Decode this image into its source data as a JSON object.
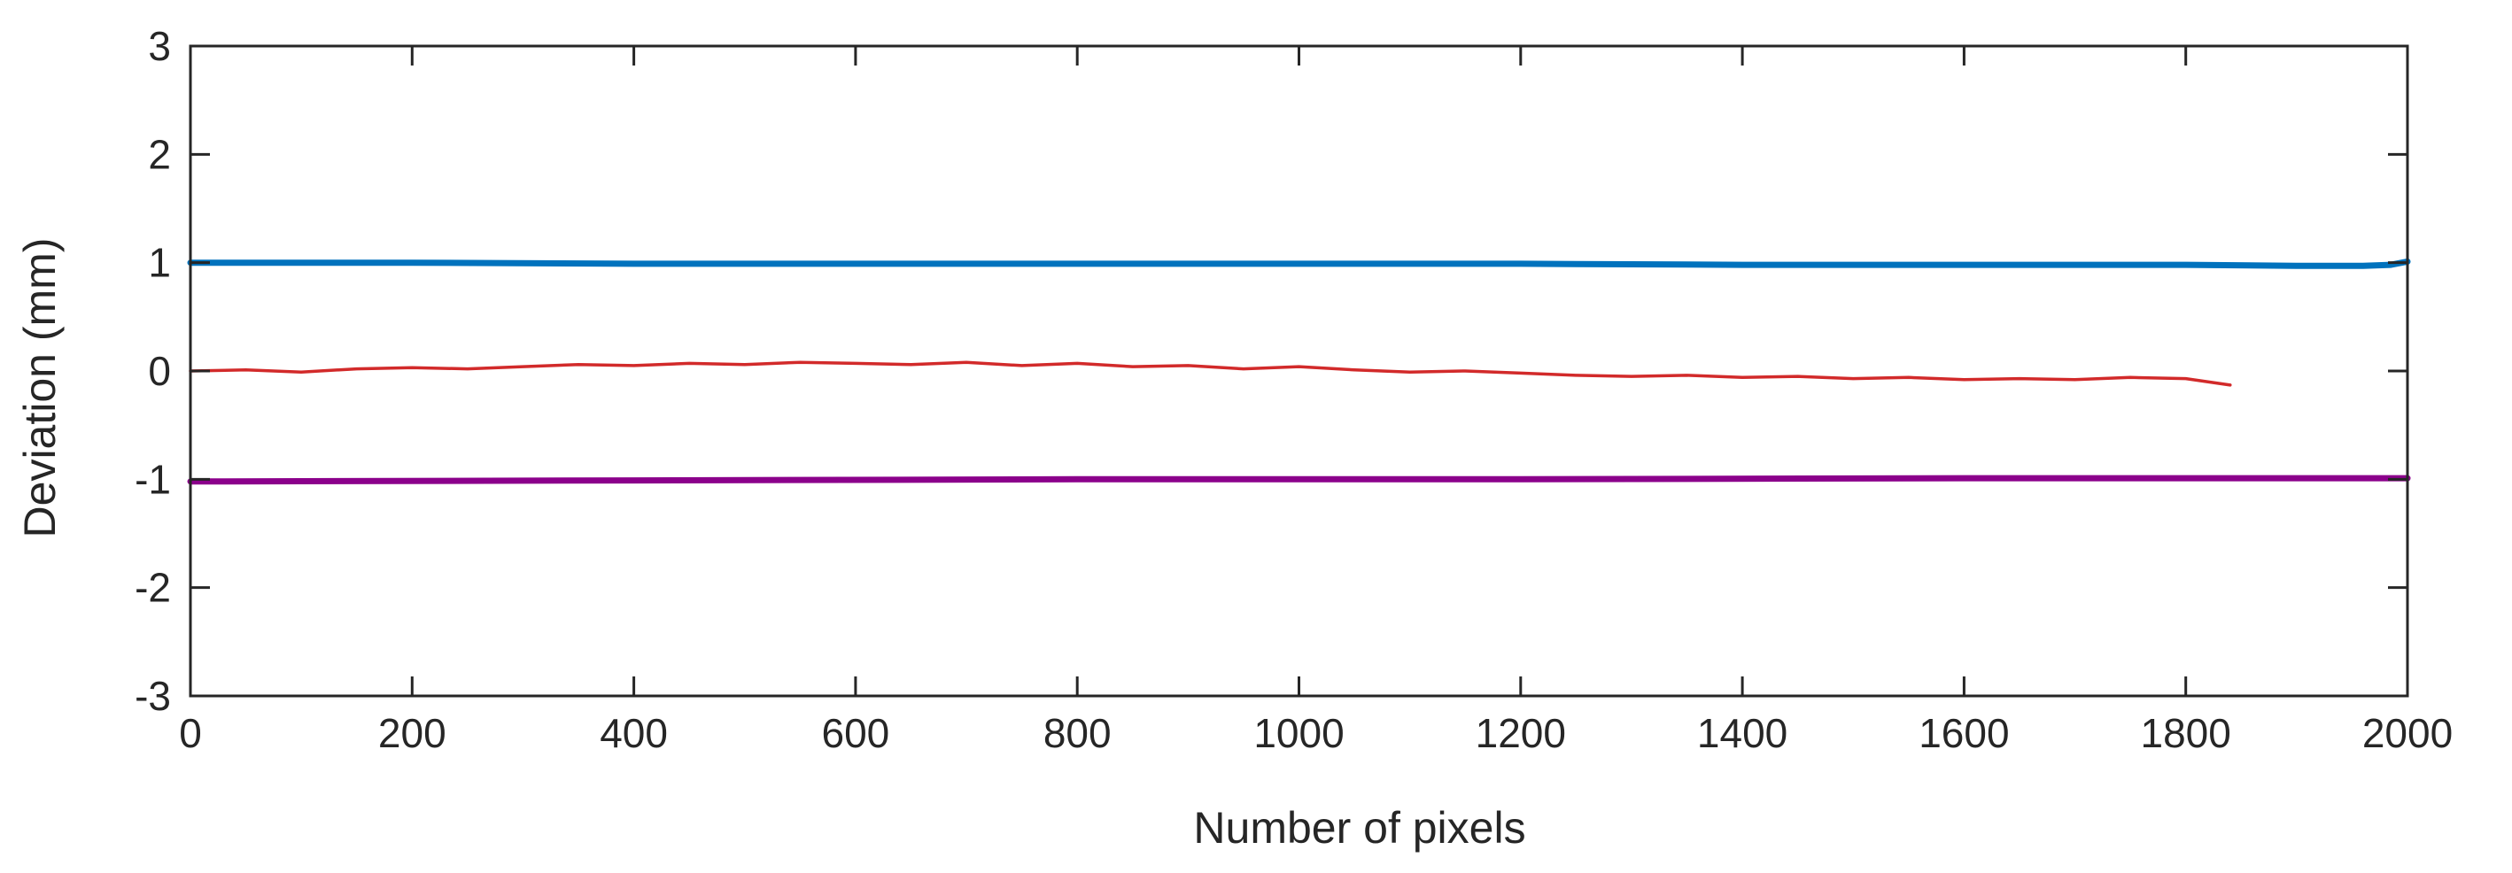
{
  "chart_data": {
    "type": "line",
    "title": "",
    "xlabel": "Number of pixels",
    "ylabel": "Deviation (mm)",
    "xlim": [
      0,
      2000
    ],
    "ylim": [
      -3,
      3
    ],
    "x_ticks": [
      0,
      200,
      400,
      600,
      800,
      1000,
      1200,
      1400,
      1600,
      1800,
      2000
    ],
    "y_ticks": [
      -3,
      -2,
      -1,
      0,
      1,
      2,
      3
    ],
    "grid": false,
    "legend": "none",
    "series": [
      {
        "color": "#0072BD",
        "x": [
          0,
          200,
          400,
          600,
          800,
          1000,
          1200,
          1400,
          1600,
          1800,
          1900,
          1960,
          1985,
          2000
        ],
        "y": [
          1.0,
          1.0,
          0.99,
          0.99,
          0.99,
          0.99,
          0.99,
          0.98,
          0.98,
          0.98,
          0.97,
          0.97,
          0.98,
          1.01
        ]
      },
      {
        "color": "#D22A2A",
        "x": [
          0,
          50,
          100,
          150,
          200,
          250,
          300,
          350,
          400,
          450,
          500,
          550,
          600,
          650,
          700,
          750,
          800,
          850,
          900,
          950,
          1000,
          1050,
          1100,
          1150,
          1200,
          1250,
          1300,
          1350,
          1400,
          1450,
          1500,
          1550,
          1600,
          1650,
          1700,
          1750,
          1800,
          1840
        ],
        "y": [
          0.0,
          0.01,
          -0.01,
          0.02,
          0.03,
          0.02,
          0.04,
          0.06,
          0.05,
          0.07,
          0.06,
          0.08,
          0.07,
          0.06,
          0.08,
          0.05,
          0.07,
          0.04,
          0.05,
          0.02,
          0.04,
          0.01,
          -0.01,
          0.0,
          -0.02,
          -0.04,
          -0.05,
          -0.04,
          -0.06,
          -0.05,
          -0.07,
          -0.06,
          -0.08,
          -0.07,
          -0.08,
          -0.06,
          -0.07,
          -0.13
        ]
      },
      {
        "color": "#8B008B",
        "x": [
          0,
          400,
          800,
          1200,
          1600,
          2000
        ],
        "y": [
          -1.02,
          -1.01,
          -1.0,
          -1.0,
          -0.99,
          -0.99
        ]
      }
    ]
  }
}
